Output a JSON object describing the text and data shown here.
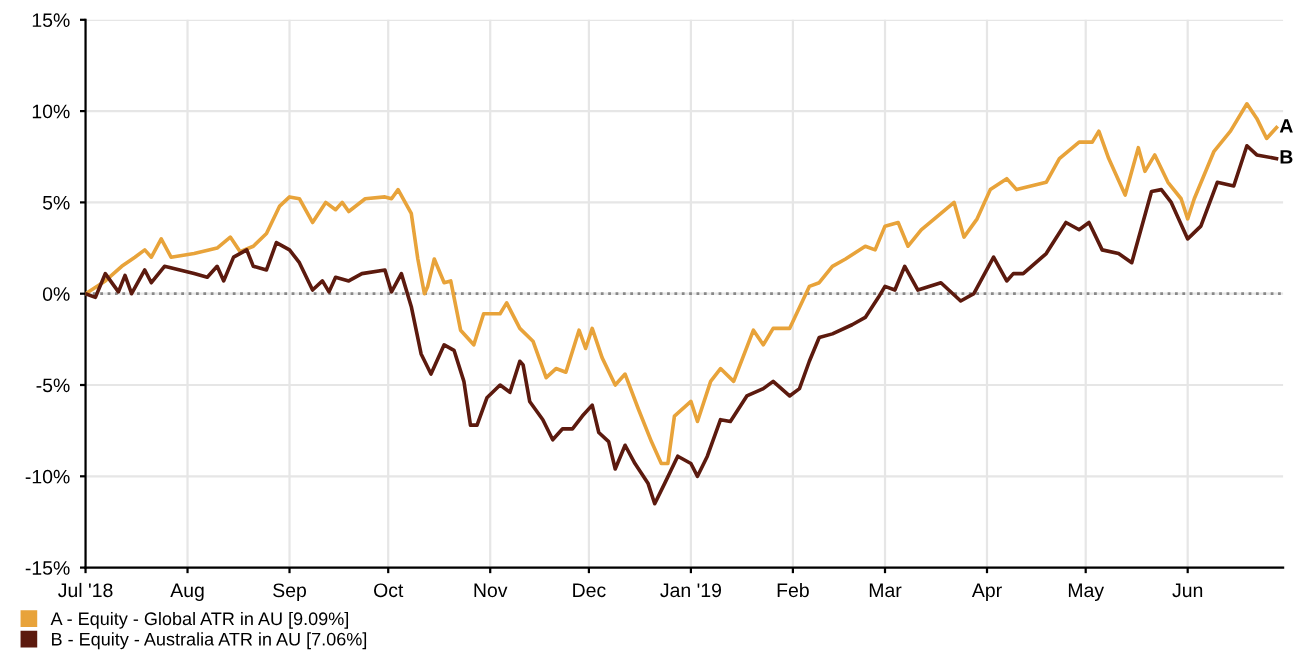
{
  "chart_data": {
    "type": "line",
    "xlim": [
      "2018-07-01",
      "2019-06-30"
    ],
    "xticks": [
      {
        "value": "2018-07-01",
        "label": "Jul '18"
      },
      {
        "value": "2018-08-01",
        "label": "Aug"
      },
      {
        "value": "2018-09-01",
        "label": "Sep"
      },
      {
        "value": "2018-10-01",
        "label": "Oct"
      },
      {
        "value": "2018-11-01",
        "label": "Nov"
      },
      {
        "value": "2018-12-01",
        "label": "Dec"
      },
      {
        "value": "2019-01-01",
        "label": "Jan '19"
      },
      {
        "value": "2019-02-01",
        "label": "Feb"
      },
      {
        "value": "2019-03-01",
        "label": "Mar"
      },
      {
        "value": "2019-04-01",
        "label": "Apr"
      },
      {
        "value": "2019-05-01",
        "label": "May"
      },
      {
        "value": "2019-06-01",
        "label": "Jun"
      }
    ],
    "ylim": [
      -15,
      15
    ],
    "yticks": [
      {
        "value": -15,
        "label": "-15%"
      },
      {
        "value": -10,
        "label": "-10%"
      },
      {
        "value": -5,
        "label": "-5%"
      },
      {
        "value": 0,
        "label": "0%"
      },
      {
        "value": 5,
        "label": "5%"
      },
      {
        "value": 10,
        "label": "10%"
      },
      {
        "value": 15,
        "label": "15%"
      }
    ],
    "grid": true,
    "legend": "bottom left",
    "marker": "none",
    "line_style": "solid",
    "ref_lines": [
      {
        "axis": "y",
        "value": 0,
        "color": "#888888",
        "line_style": "dotted"
      }
    ],
    "annotations": [
      {
        "text": "A",
        "x": "2019-06-28",
        "y": 9.1
      },
      {
        "text": "B",
        "x": "2019-06-28",
        "y": 7.4
      }
    ],
    "series": [
      {
        "name": "A - Equity - Global ATR in AU [9.09%]",
        "color": "#e8a33a",
        "x": [
          "2018-07-01",
          "2018-07-07",
          "2018-07-12",
          "2018-07-16",
          "2018-07-19",
          "2018-07-21",
          "2018-07-24",
          "2018-07-27",
          "2018-08-03",
          "2018-08-10",
          "2018-08-14",
          "2018-08-17",
          "2018-08-21",
          "2018-08-25",
          "2018-08-29",
          "2018-09-01",
          "2018-09-04",
          "2018-09-08",
          "2018-09-12",
          "2018-09-15",
          "2018-09-17",
          "2018-09-19",
          "2018-09-24",
          "2018-09-30",
          "2018-10-02",
          "2018-10-04",
          "2018-10-08",
          "2018-10-10",
          "2018-10-12",
          "2018-10-13",
          "2018-10-15",
          "2018-10-18",
          "2018-10-20",
          "2018-10-23",
          "2018-10-27",
          "2018-10-30",
          "2018-11-04",
          "2018-11-06",
          "2018-11-10",
          "2018-11-14",
          "2018-11-18",
          "2018-11-21",
          "2018-11-24",
          "2018-11-28",
          "2018-11-30",
          "2018-12-02",
          "2018-12-05",
          "2018-12-09",
          "2018-12-12",
          "2018-12-16",
          "2018-12-20",
          "2018-12-23",
          "2018-12-25",
          "2018-12-27",
          "2019-01-01",
          "2019-01-03",
          "2019-01-07",
          "2019-01-10",
          "2019-01-14",
          "2019-01-20",
          "2019-01-23",
          "2019-01-26",
          "2019-01-31",
          "2019-02-06",
          "2019-02-09",
          "2019-02-13",
          "2019-02-17",
          "2019-02-23",
          "2019-02-26",
          "2019-03-01",
          "2019-03-05",
          "2019-03-08",
          "2019-03-12",
          "2019-03-18",
          "2019-03-22",
          "2019-03-25",
          "2019-03-29",
          "2019-04-02",
          "2019-04-07",
          "2019-04-10",
          "2019-04-19",
          "2019-04-23",
          "2019-04-29",
          "2019-05-03",
          "2019-05-05",
          "2019-05-08",
          "2019-05-13",
          "2019-05-17",
          "2019-05-19",
          "2019-05-22",
          "2019-05-26",
          "2019-05-30",
          "2019-06-01",
          "2019-06-03",
          "2019-06-09",
          "2019-06-14",
          "2019-06-19",
          "2019-06-22",
          "2019-06-25",
          "2019-06-28"
        ],
        "values": [
          0,
          0.7,
          1.5,
          2.0,
          2.4,
          2.0,
          3.0,
          2.0,
          2.2,
          2.5,
          3.1,
          2.3,
          2.6,
          3.3,
          4.8,
          5.3,
          5.2,
          3.9,
          5.0,
          4.6,
          5.0,
          4.5,
          5.2,
          5.3,
          5.2,
          5.7,
          4.4,
          1.9,
          0,
          0.4,
          1.9,
          0.6,
          0.7,
          -2.0,
          -2.8,
          -1.1,
          -1.1,
          -0.5,
          -1.9,
          -2.6,
          -4.6,
          -4.1,
          -4.3,
          -2.0,
          -3.0,
          -1.9,
          -3.5,
          -5.0,
          -4.4,
          -6.3,
          -8.1,
          -9.3,
          -9.3,
          -6.7,
          -5.9,
          -7.0,
          -4.8,
          -4.1,
          -4.8,
          -2.0,
          -2.8,
          -1.9,
          -1.9,
          0.4,
          0.6,
          1.5,
          1.9,
          2.6,
          2.4,
          3.7,
          3.9,
          2.6,
          3.5,
          4.4,
          5.0,
          3.1,
          4.1,
          5.7,
          6.3,
          5.7,
          6.1,
          7.4,
          8.3,
          8.3,
          8.9,
          7.4,
          5.4,
          8.0,
          6.7,
          7.6,
          6.1,
          5.2,
          4.1,
          5.2,
          7.8,
          8.9,
          10.4,
          9.6,
          8.5,
          9.1
        ]
      },
      {
        "name": "B - Equity - Australia ATR in AU [7.06%]",
        "color": "#5c1a0e",
        "x": [
          "2018-07-01",
          "2018-07-04",
          "2018-07-07",
          "2018-07-11",
          "2018-07-13",
          "2018-07-15",
          "2018-07-19",
          "2018-07-21",
          "2018-07-25",
          "2018-08-03",
          "2018-08-07",
          "2018-08-10",
          "2018-08-12",
          "2018-08-15",
          "2018-08-19",
          "2018-08-21",
          "2018-08-25",
          "2018-08-28",
          "2018-09-01",
          "2018-09-04",
          "2018-09-08",
          "2018-09-11",
          "2018-09-13",
          "2018-09-15",
          "2018-09-19",
          "2018-09-23",
          "2018-09-30",
          "2018-10-02",
          "2018-10-05",
          "2018-10-08",
          "2018-10-11",
          "2018-10-14",
          "2018-10-18",
          "2018-10-21",
          "2018-10-24",
          "2018-10-26",
          "2018-10-28",
          "2018-10-31",
          "2018-11-04",
          "2018-11-07",
          "2018-11-10",
          "2018-11-11",
          "2018-11-13",
          "2018-11-17",
          "2018-11-20",
          "2018-11-23",
          "2018-11-26",
          "2018-11-29",
          "2018-12-02",
          "2018-12-04",
          "2018-12-07",
          "2018-12-09",
          "2018-12-12",
          "2018-12-15",
          "2018-12-19",
          "2018-12-21",
          "2018-12-24",
          "2018-12-28",
          "2019-01-01",
          "2019-01-03",
          "2019-01-06",
          "2019-01-10",
          "2019-01-13",
          "2019-01-18",
          "2019-01-23",
          "2019-01-26",
          "2019-01-31",
          "2019-02-03",
          "2019-02-06",
          "2019-02-09",
          "2019-02-13",
          "2019-02-19",
          "2019-02-23",
          "2019-02-27",
          "2019-03-01",
          "2019-03-04",
          "2019-03-07",
          "2019-03-11",
          "2019-03-18",
          "2019-03-24",
          "2019-03-28",
          "2019-04-03",
          "2019-04-07",
          "2019-04-09",
          "2019-04-12",
          "2019-04-19",
          "2019-04-25",
          "2019-04-29",
          "2019-05-02",
          "2019-05-06",
          "2019-05-11",
          "2019-05-15",
          "2019-05-21",
          "2019-05-24",
          "2019-05-27",
          "2019-06-01",
          "2019-06-05",
          "2019-06-10",
          "2019-06-15",
          "2019-06-19",
          "2019-06-22",
          "2019-06-28"
        ],
        "values": [
          0,
          -0.2,
          1.1,
          0.1,
          1.0,
          0,
          1.3,
          0.6,
          1.5,
          1.1,
          0.9,
          1.5,
          0.7,
          2.0,
          2.4,
          1.5,
          1.3,
          2.8,
          2.4,
          1.7,
          0.2,
          0.7,
          0.1,
          0.9,
          0.7,
          1.1,
          1.3,
          0.1,
          1.1,
          -0.7,
          -3.3,
          -4.4,
          -2.8,
          -3.1,
          -4.8,
          -7.2,
          -7.2,
          -5.7,
          -5.0,
          -5.4,
          -3.7,
          -3.9,
          -5.9,
          -6.9,
          -8.0,
          -7.4,
          -7.4,
          -6.7,
          -6.1,
          -7.6,
          -8.1,
          -9.6,
          -8.3,
          -9.3,
          -10.4,
          -11.5,
          -10.4,
          -8.9,
          -9.3,
          -10.0,
          -8.9,
          -6.9,
          -7.0,
          -5.6,
          -5.2,
          -4.8,
          -5.6,
          -5.2,
          -3.7,
          -2.4,
          -2.2,
          -1.7,
          -1.3,
          -0.2,
          0.4,
          0.2,
          1.5,
          0.2,
          0.6,
          -0.4,
          0,
          2.0,
          0.7,
          1.1,
          1.1,
          2.2,
          3.9,
          3.5,
          3.9,
          2.4,
          2.2,
          1.7,
          5.6,
          5.7,
          5.0,
          3.0,
          3.7,
          6.1,
          5.9,
          8.1,
          7.6,
          7.4
        ]
      }
    ]
  }
}
